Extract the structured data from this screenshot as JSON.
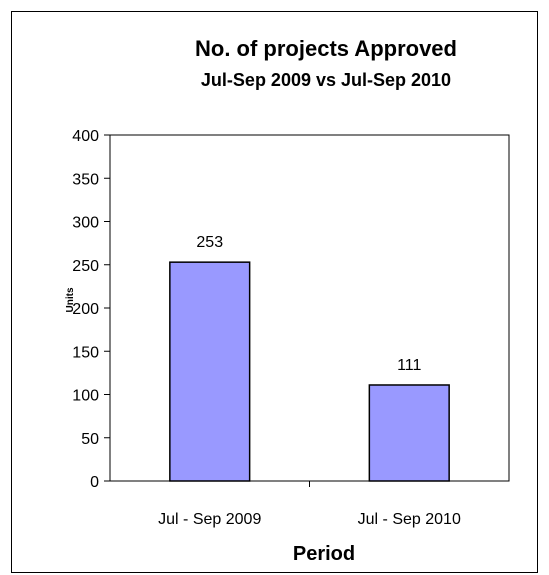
{
  "chart_data": {
    "type": "bar",
    "title": "No. of projects Approved",
    "subtitle": "Jul-Sep 2009 vs Jul-Sep 2010",
    "xlabel": "Period",
    "ylabel": "Units",
    "categories": [
      "Jul - Sep 2009",
      "Jul - Sep 2010"
    ],
    "values": [
      253,
      111
    ],
    "data_labels": [
      "253",
      "111"
    ],
    "ylim": [
      0,
      400
    ],
    "yticks": [
      0,
      50,
      100,
      150,
      200,
      250,
      300,
      350,
      400
    ],
    "grid": false,
    "legend": "none",
    "colors": {
      "bar_fill": "#9999FF",
      "bar_stroke": "#000000",
      "axis": "#000000"
    }
  }
}
